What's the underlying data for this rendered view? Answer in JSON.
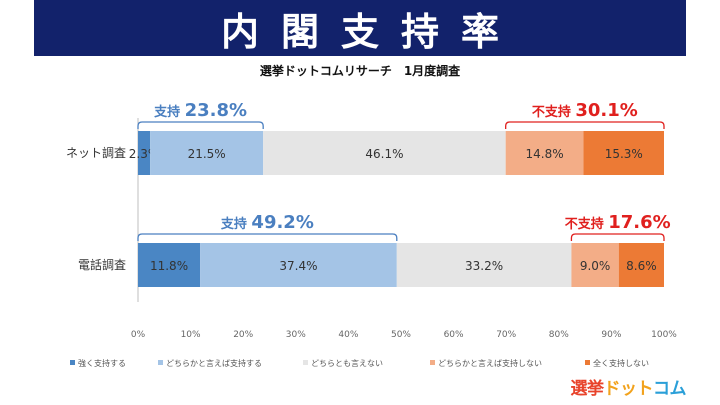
{
  "banner": {
    "title": "内閣支持率"
  },
  "subtitle": "選挙ドットコムリサーチ　1月度調査",
  "logo": {
    "part1": "選挙",
    "part2": "ドット",
    "part3": "コム"
  },
  "chart_data": {
    "type": "bar",
    "orientation": "horizontal",
    "stacked": true,
    "normalized": true,
    "categories": [
      "ネット調査",
      "電話調査"
    ],
    "series": [
      {
        "name": "強く支持する",
        "values": [
          2.3,
          11.8
        ],
        "labels": [
          "2.3%",
          "11.8%"
        ],
        "color": "#4a86c4"
      },
      {
        "name": "どちらかと言えば支持する",
        "values": [
          21.5,
          37.4
        ],
        "labels": [
          "21.5%",
          "37.4%"
        ],
        "color": "#a4c4e6"
      },
      {
        "name": "どちらとも言えない",
        "values": [
          46.1,
          33.2
        ],
        "labels": [
          "46.1%",
          "33.2%"
        ],
        "color": "#e5e5e5"
      },
      {
        "name": "どちらかと言えば支持しない",
        "values": [
          14.8,
          9.0
        ],
        "labels": [
          "14.8%",
          "9.0%"
        ],
        "color": "#f3ad87"
      },
      {
        "name": "全く支持しない",
        "values": [
          15.3,
          8.6
        ],
        "labels": [
          "15.3%",
          "8.6%"
        ],
        "color": "#ec7a35"
      }
    ],
    "xlim": [
      0,
      100
    ],
    "xticks": [
      "0%",
      "10%",
      "20%",
      "30%",
      "40%",
      "50%",
      "60%",
      "70%",
      "80%",
      "90%",
      "100%"
    ],
    "legend_position": "bottom",
    "annotations": [
      {
        "category": "ネット調査",
        "label": "支持",
        "value": "23.8%",
        "from": 0,
        "to": 23.8,
        "color": "#4a7fc0"
      },
      {
        "category": "ネット調査",
        "label": "不支持",
        "value": "30.1%",
        "from": 69.9,
        "to": 100,
        "color": "#e0201e"
      },
      {
        "category": "電話調査",
        "label": "支持",
        "value": "49.2%",
        "from": 0,
        "to": 49.2,
        "color": "#4a7fc0"
      },
      {
        "category": "電話調査",
        "label": "不支持",
        "value": "17.6%",
        "from": 82.4,
        "to": 100,
        "color": "#e0201e"
      }
    ]
  }
}
